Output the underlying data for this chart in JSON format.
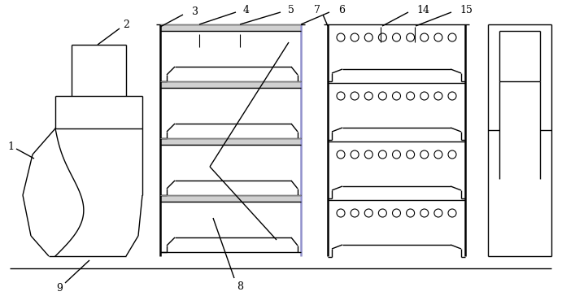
{
  "fig_width": 6.91,
  "fig_height": 3.64,
  "dpi": 100,
  "lc": "#000000",
  "bg": "#ffffff",
  "gray_fill": "#d0d0d0",
  "purple": "#9090cc",
  "lw": 1.0,
  "lw_thick": 1.8
}
